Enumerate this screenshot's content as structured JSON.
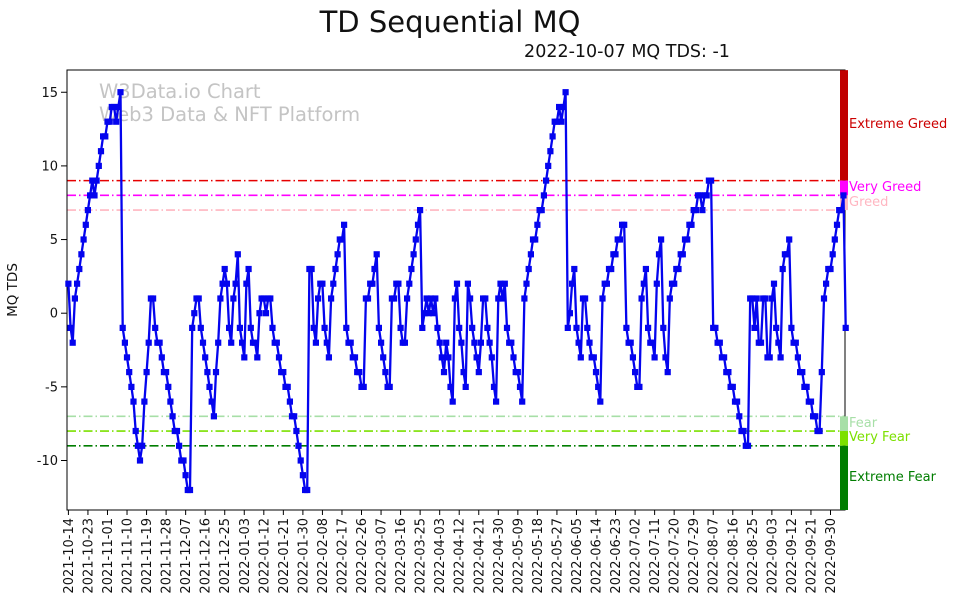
{
  "title": "TD Sequential MQ",
  "subtitle": "2022-10-07 MQ TDS: -1",
  "watermark": {
    "line1": "W3Data.io Chart",
    "line2": "Web3 Data & NFT Platform"
  },
  "axes": {
    "y_label": "MQ TDS",
    "y_ticks": [
      15,
      10,
      5,
      0,
      -5,
      -10
    ],
    "x_tick_interval_days": 9,
    "x_tick_labels": [
      "2021-10-14",
      "2021-10-23",
      "2021-11-01",
      "2021-11-10",
      "2021-11-19",
      "2021-11-28",
      "2021-12-07",
      "2021-12-16",
      "2021-12-25",
      "2022-01-03",
      "2022-01-12",
      "2022-01-21",
      "2022-01-30",
      "2022-02-08",
      "2022-02-17",
      "2022-02-26",
      "2022-03-07",
      "2022-03-16",
      "2022-03-25",
      "2022-04-03",
      "2022-04-12",
      "2022-04-21",
      "2022-04-30",
      "2022-05-09",
      "2022-05-18",
      "2022-05-27",
      "2022-06-05",
      "2022-06-14",
      "2022-06-23",
      "2022-07-02",
      "2022-07-11",
      "2022-07-20",
      "2022-07-29",
      "2022-08-07",
      "2022-08-16",
      "2022-08-25",
      "2022-09-03",
      "2022-09-12",
      "2022-09-21",
      "2022-09-30"
    ]
  },
  "zones": [
    {
      "label": "Extreme Greed",
      "from": 9,
      "to": 16.5,
      "line_color": "#e60000",
      "bar_color": "#c00000",
      "label_color": "#cc0000"
    },
    {
      "label": "Very Greed",
      "from": 8,
      "to": 9,
      "line_color": "#ff00ff",
      "bar_color": "#ff00ff",
      "label_color": "#ff00ff"
    },
    {
      "label": "Greed",
      "from": 7,
      "to": 8,
      "line_color": "#ffb6c1",
      "bar_color": "#ffb6c1",
      "label_color": "#ffb6c1"
    },
    {
      "label": "Fear",
      "from": -7,
      "to": -8,
      "line_color": "#a7dfa7",
      "bar_color": "#a7dfa7",
      "label_color": "#a7dfa7"
    },
    {
      "label": "Very Fear",
      "from": -8,
      "to": -9,
      "line_color": "#7ce000",
      "bar_color": "#7ce000",
      "label_color": "#7ce000"
    },
    {
      "label": "Extreme Fear",
      "from": -9,
      "to": -13.36,
      "line_color": "#007d00",
      "bar_color": "#007d00",
      "label_color": "#007d00"
    }
  ],
  "chart_data": {
    "type": "line",
    "series_name": "MQ TDS",
    "line_color": "#0404ee",
    "marker": "square",
    "frequency": "daily",
    "x_start_date": "2021-10-14",
    "x_end_date": "2022-10-07",
    "ylim": [
      -13.36,
      16.5
    ],
    "grid": false,
    "threshold_values": [
      9,
      8,
      7,
      -7,
      -8,
      -9
    ],
    "values": [
      2,
      -1,
      -2,
      1,
      2,
      3,
      4,
      5,
      6,
      7,
      8,
      9,
      8,
      9,
      10,
      11,
      12,
      12,
      13,
      13,
      14,
      14,
      13,
      14,
      15,
      -1,
      -2,
      -3,
      -4,
      -5,
      -6,
      -8,
      -9,
      -10,
      -9,
      -6,
      -4,
      -2,
      1,
      1,
      -1,
      -2,
      -2,
      -3,
      -4,
      -4,
      -5,
      -6,
      -7,
      -8,
      -8,
      -9,
      -10,
      -10,
      -11,
      -12,
      -12,
      -1,
      0,
      1,
      1,
      -1,
      -2,
      -3,
      -4,
      -5,
      -6,
      -7,
      -4,
      -2,
      1,
      2,
      3,
      2,
      -1,
      -2,
      1,
      2,
      4,
      -1,
      -2,
      -3,
      2,
      3,
      -1,
      -2,
      -2,
      -3,
      0,
      1,
      1,
      0,
      1,
      1,
      -1,
      -2,
      -2,
      -3,
      -4,
      -4,
      -5,
      -5,
      -6,
      -7,
      -7,
      -8,
      -9,
      -10,
      -11,
      -12,
      -12,
      3,
      3,
      -1,
      -2,
      1,
      2,
      2,
      -1,
      -2,
      -3,
      1,
      2,
      3,
      4,
      5,
      5,
      6,
      -1,
      -2,
      -2,
      -3,
      -3,
      -4,
      -4,
      -5,
      -5,
      1,
      1,
      2,
      2,
      3,
      4,
      -1,
      -2,
      -3,
      -4,
      -5,
      -5,
      1,
      1,
      2,
      2,
      -1,
      -2,
      -2,
      1,
      2,
      3,
      4,
      5,
      6,
      7,
      -1,
      0,
      1,
      0,
      1,
      0,
      1,
      -1,
      -2,
      -3,
      -4,
      -2,
      -3,
      -5,
      -6,
      1,
      2,
      -1,
      -2,
      -4,
      -5,
      2,
      1,
      -1,
      -2,
      -3,
      -4,
      -2,
      1,
      1,
      -1,
      -2,
      -3,
      -5,
      -6,
      1,
      2,
      1,
      2,
      -1,
      -2,
      -2,
      -3,
      -4,
      -4,
      -5,
      -6,
      1,
      2,
      3,
      4,
      5,
      5,
      6,
      7,
      7,
      8,
      9,
      10,
      11,
      12,
      13,
      13,
      14,
      13,
      14,
      15,
      -1,
      0,
      2,
      3,
      -1,
      -2,
      -3,
      1,
      1,
      -1,
      -2,
      -3,
      -3,
      -4,
      -5,
      -6,
      1,
      2,
      2,
      3,
      3,
      4,
      4,
      5,
      5,
      6,
      6,
      -1,
      -2,
      -2,
      -3,
      -4,
      -5,
      -5,
      1,
      2,
      3,
      -1,
      -2,
      -2,
      -3,
      2,
      4,
      5,
      -1,
      -3,
      -4,
      1,
      2,
      2,
      3,
      3,
      4,
      4,
      5,
      5,
      6,
      6,
      7,
      7,
      8,
      8,
      7,
      8,
      8,
      9,
      9,
      -1,
      -1,
      -2,
      -2,
      -3,
      -3,
      -4,
      -4,
      -5,
      -5,
      -6,
      -6,
      -7,
      -8,
      -8,
      -9,
      -9,
      1,
      1,
      -1,
      1,
      -2,
      -2,
      1,
      1,
      -3,
      -3,
      1,
      2,
      -1,
      -2,
      -3,
      3,
      4,
      4,
      5,
      -1,
      -2,
      -2,
      -3,
      -4,
      -4,
      -5,
      -5,
      -6,
      -6,
      -7,
      -7,
      -8,
      -8,
      -4,
      1,
      2,
      3,
      3,
      4,
      5,
      6,
      7,
      7,
      8,
      -1
    ]
  }
}
